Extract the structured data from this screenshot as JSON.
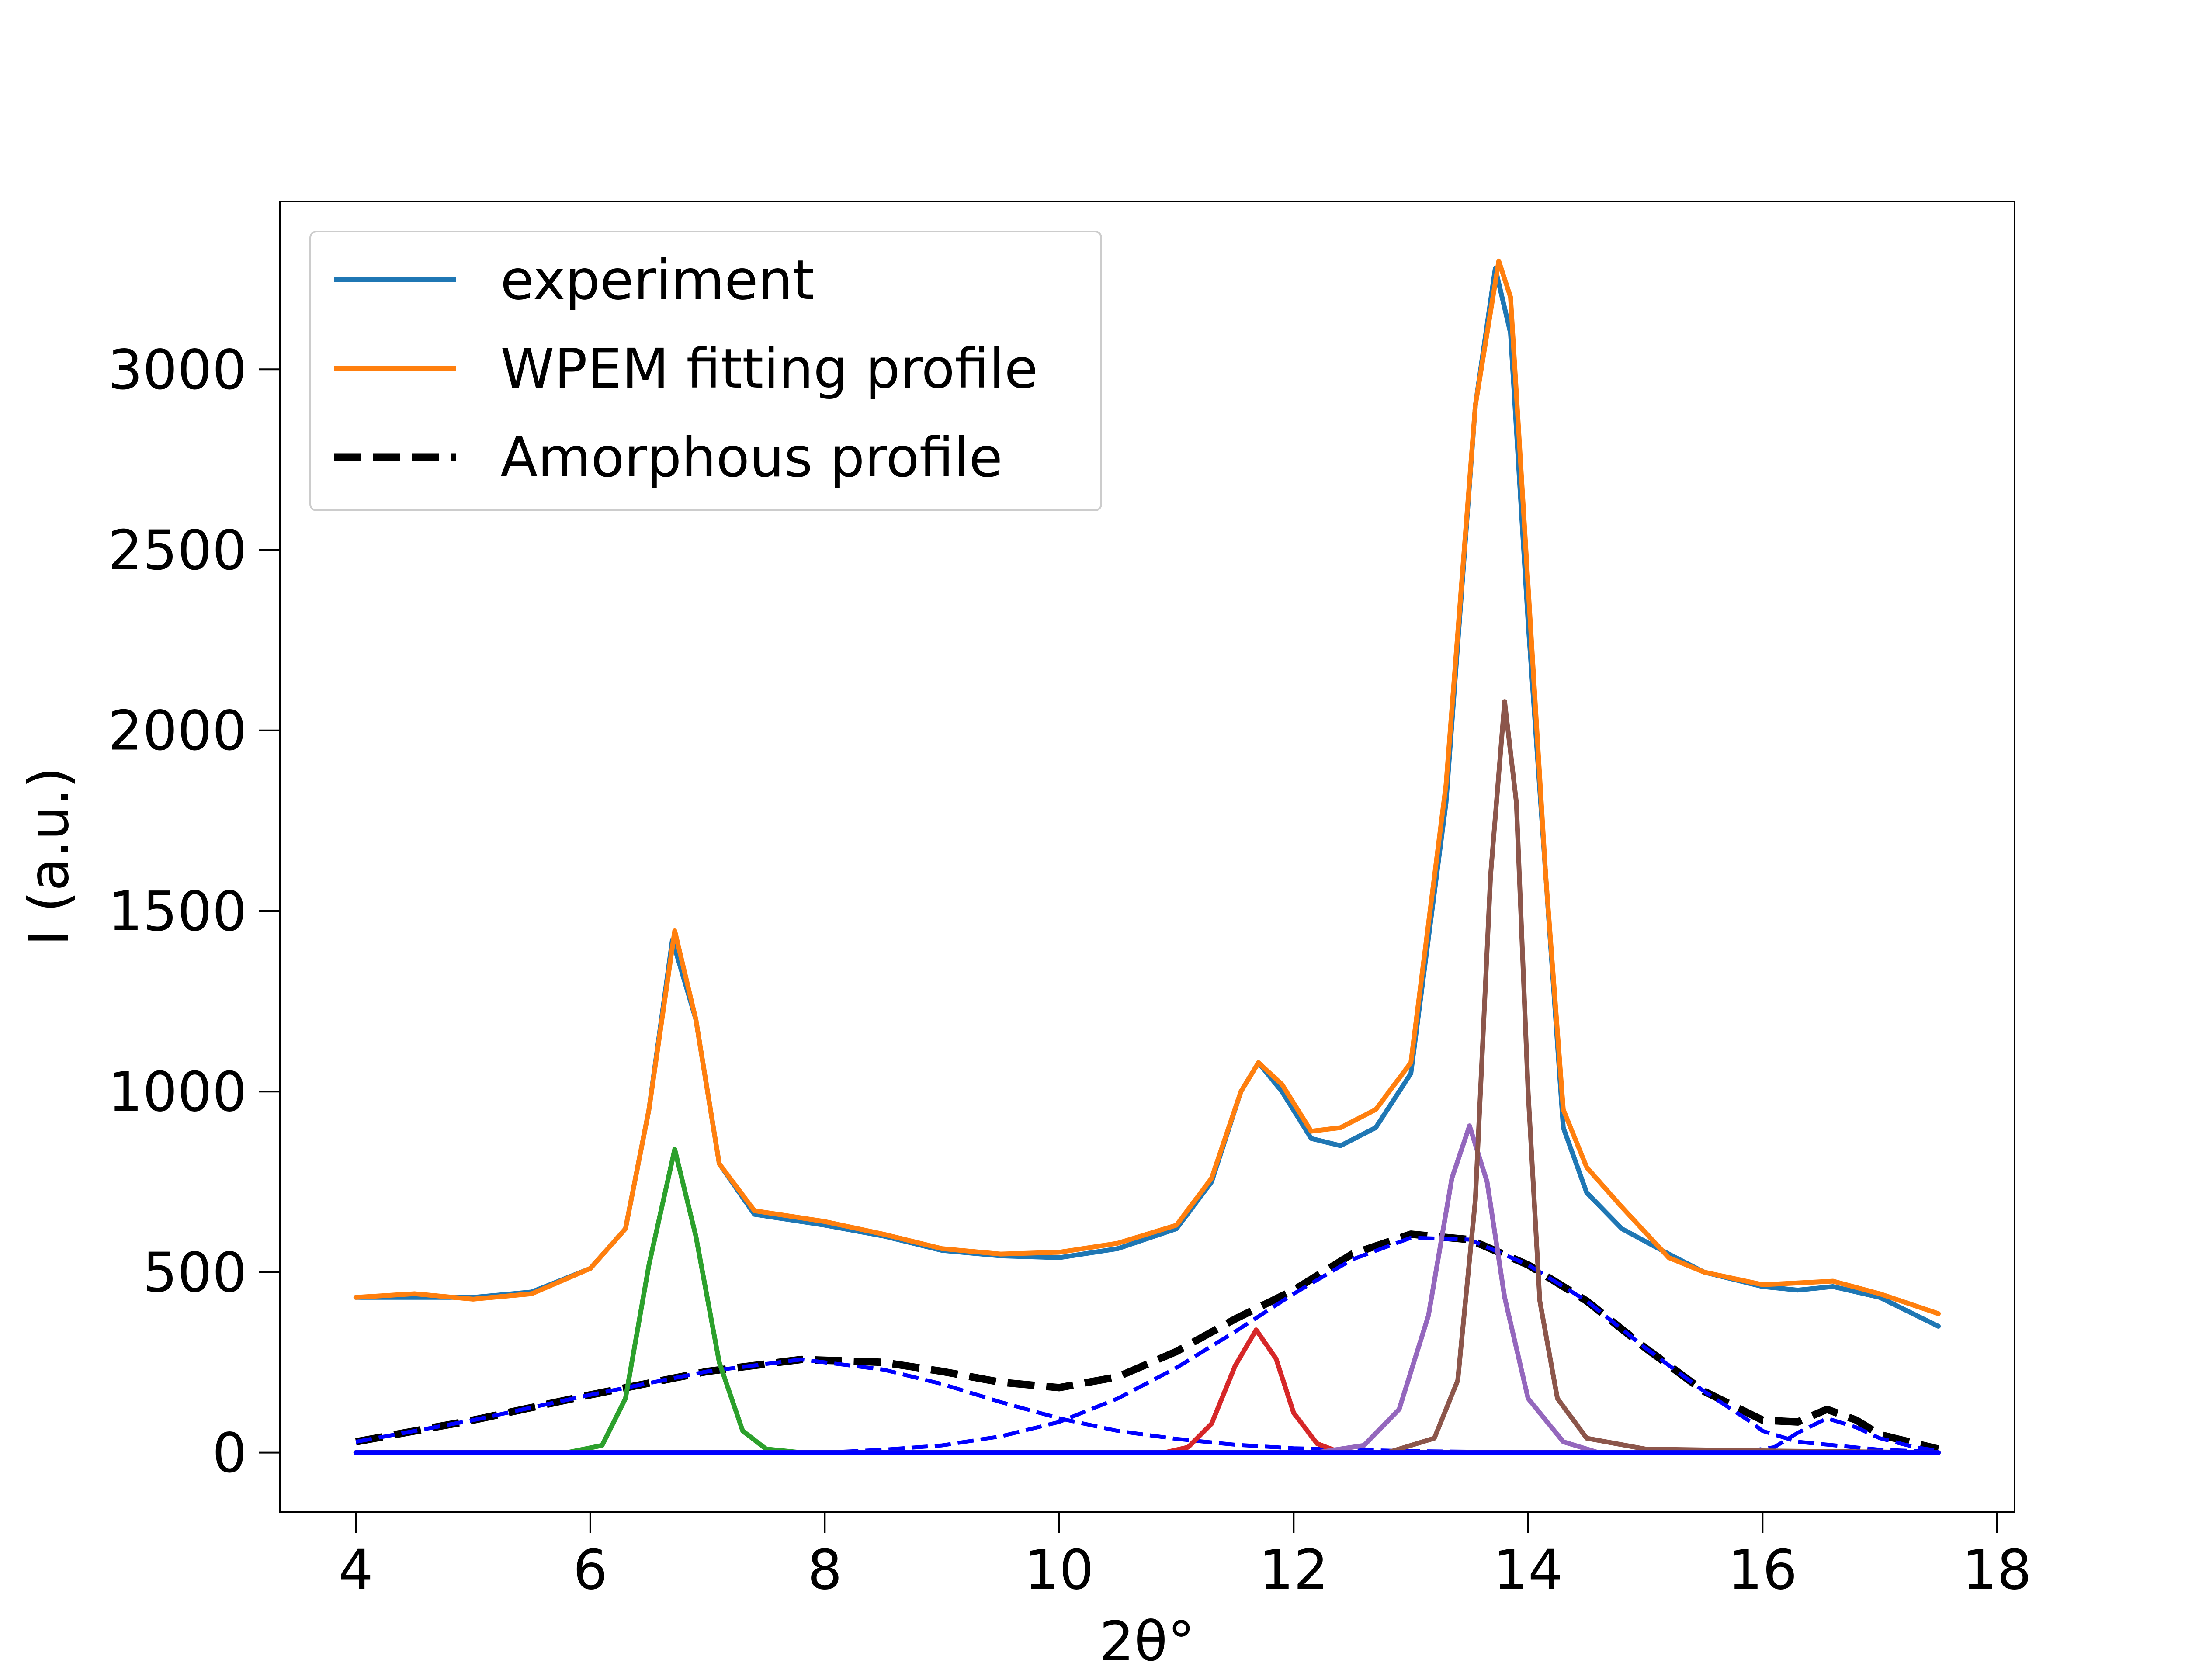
{
  "chart_data": {
    "type": "line",
    "title": "",
    "xlabel": "2θ°",
    "ylabel": "I (a.u.)",
    "xlim": [
      3.35,
      18.15
    ],
    "ylim": [
      -165,
      3465
    ],
    "xticks": [
      4,
      6,
      8,
      10,
      12,
      14,
      16,
      18
    ],
    "yticks": [
      0,
      500,
      1000,
      1500,
      2000,
      2500,
      3000
    ],
    "grid": false,
    "legend_position": "top-left",
    "legend": [
      {
        "label": "experiment",
        "color": "#1f77b4",
        "style": "solid"
      },
      {
        "label": "WPEM fitting profile",
        "color": "#ff7f0e",
        "style": "solid"
      },
      {
        "label": "Amorphous profile",
        "color": "#000000",
        "style": "dashed"
      }
    ],
    "series": [
      {
        "name": "experiment",
        "color": "#1f77b4",
        "style": "solid",
        "points": [
          [
            4.0,
            430
          ],
          [
            4.5,
            430
          ],
          [
            5.0,
            430
          ],
          [
            5.5,
            445
          ],
          [
            6.0,
            510
          ],
          [
            6.3,
            620
          ],
          [
            6.5,
            950
          ],
          [
            6.7,
            1420
          ],
          [
            6.9,
            1200
          ],
          [
            7.1,
            800
          ],
          [
            7.4,
            660
          ],
          [
            8.0,
            630
          ],
          [
            8.5,
            600
          ],
          [
            9.0,
            560
          ],
          [
            9.5,
            545
          ],
          [
            10.0,
            540
          ],
          [
            10.5,
            565
          ],
          [
            11.0,
            620
          ],
          [
            11.3,
            750
          ],
          [
            11.55,
            1000
          ],
          [
            11.7,
            1080
          ],
          [
            11.9,
            1000
          ],
          [
            12.15,
            870
          ],
          [
            12.4,
            850
          ],
          [
            12.7,
            900
          ],
          [
            13.0,
            1050
          ],
          [
            13.3,
            1800
          ],
          [
            13.55,
            2900
          ],
          [
            13.72,
            3280
          ],
          [
            13.85,
            3100
          ],
          [
            14.0,
            2300
          ],
          [
            14.15,
            1600
          ],
          [
            14.3,
            900
          ],
          [
            14.5,
            720
          ],
          [
            14.8,
            620
          ],
          [
            15.2,
            550
          ],
          [
            15.5,
            500
          ],
          [
            16.0,
            460
          ],
          [
            16.3,
            450
          ],
          [
            16.6,
            460
          ],
          [
            17.0,
            430
          ],
          [
            17.5,
            350
          ]
        ]
      },
      {
        "name": "WPEM fitting profile",
        "color": "#ff7f0e",
        "style": "solid",
        "points": [
          [
            4.0,
            430
          ],
          [
            4.5,
            440
          ],
          [
            5.0,
            425
          ],
          [
            5.5,
            440
          ],
          [
            6.0,
            510
          ],
          [
            6.3,
            620
          ],
          [
            6.5,
            950
          ],
          [
            6.72,
            1445
          ],
          [
            6.9,
            1200
          ],
          [
            7.1,
            800
          ],
          [
            7.4,
            670
          ],
          [
            8.0,
            640
          ],
          [
            8.5,
            605
          ],
          [
            9.0,
            565
          ],
          [
            9.5,
            550
          ],
          [
            10.0,
            555
          ],
          [
            10.5,
            580
          ],
          [
            11.0,
            630
          ],
          [
            11.3,
            760
          ],
          [
            11.55,
            1000
          ],
          [
            11.7,
            1080
          ],
          [
            11.9,
            1020
          ],
          [
            12.15,
            890
          ],
          [
            12.4,
            900
          ],
          [
            12.7,
            950
          ],
          [
            13.0,
            1080
          ],
          [
            13.3,
            1850
          ],
          [
            13.55,
            2900
          ],
          [
            13.75,
            3300
          ],
          [
            13.85,
            3200
          ],
          [
            14.0,
            2400
          ],
          [
            14.15,
            1600
          ],
          [
            14.3,
            950
          ],
          [
            14.5,
            790
          ],
          [
            14.8,
            680
          ],
          [
            15.2,
            540
          ],
          [
            15.5,
            500
          ],
          [
            16.0,
            465
          ],
          [
            16.3,
            470
          ],
          [
            16.6,
            475
          ],
          [
            17.0,
            440
          ],
          [
            17.5,
            385
          ]
        ]
      },
      {
        "name": "Amorphous profile",
        "color": "#000000",
        "style": "dashed",
        "points": [
          [
            4.0,
            30
          ],
          [
            5.0,
            90
          ],
          [
            6.0,
            160
          ],
          [
            7.0,
            225
          ],
          [
            7.8,
            258
          ],
          [
            8.5,
            250
          ],
          [
            9.0,
            225
          ],
          [
            9.5,
            195
          ],
          [
            10.0,
            180
          ],
          [
            10.5,
            210
          ],
          [
            11.0,
            280
          ],
          [
            11.5,
            370
          ],
          [
            12.0,
            450
          ],
          [
            12.5,
            550
          ],
          [
            13.0,
            605
          ],
          [
            13.5,
            590
          ],
          [
            14.0,
            520
          ],
          [
            14.5,
            420
          ],
          [
            15.0,
            290
          ],
          [
            15.5,
            170
          ],
          [
            16.0,
            90
          ],
          [
            16.3,
            85
          ],
          [
            16.55,
            120
          ],
          [
            16.8,
            90
          ],
          [
            17.0,
            50
          ],
          [
            17.5,
            10
          ]
        ]
      },
      {
        "color": "#0000ff",
        "style": "dashed",
        "points": [
          [
            4.0,
            30
          ],
          [
            5.0,
            90
          ],
          [
            6.0,
            160
          ],
          [
            7.0,
            225
          ],
          [
            7.8,
            258
          ],
          [
            8.5,
            230
          ],
          [
            9.0,
            190
          ],
          [
            9.5,
            140
          ],
          [
            10.0,
            95
          ],
          [
            10.5,
            60
          ],
          [
            11.0,
            38
          ],
          [
            11.5,
            22
          ],
          [
            12.0,
            12
          ],
          [
            13.0,
            4
          ],
          [
            14.0,
            1
          ],
          [
            17.5,
            0
          ]
        ]
      },
      {
        "color": "#0000ff",
        "style": "dashed",
        "points": [
          [
            4.0,
            0
          ],
          [
            8.0,
            0
          ],
          [
            8.5,
            8
          ],
          [
            9.0,
            20
          ],
          [
            9.5,
            45
          ],
          [
            10.0,
            85
          ],
          [
            10.5,
            150
          ],
          [
            11.0,
            235
          ],
          [
            11.5,
            335
          ],
          [
            12.0,
            440
          ],
          [
            12.5,
            535
          ],
          [
            13.0,
            595
          ],
          [
            13.5,
            590
          ],
          [
            14.0,
            520
          ],
          [
            14.5,
            420
          ],
          [
            15.0,
            290
          ],
          [
            15.5,
            170
          ],
          [
            15.9,
            85
          ],
          [
            16.0,
            60
          ],
          [
            16.3,
            30
          ],
          [
            17.0,
            8
          ],
          [
            17.5,
            2
          ]
        ]
      },
      {
        "color": "#0000ff",
        "style": "dashed",
        "points": [
          [
            4.0,
            0
          ],
          [
            15.8,
            0
          ],
          [
            16.1,
            15
          ],
          [
            16.3,
            55
          ],
          [
            16.55,
            95
          ],
          [
            16.8,
            70
          ],
          [
            17.0,
            40
          ],
          [
            17.3,
            15
          ],
          [
            17.5,
            5
          ]
        ]
      },
      {
        "color": "#2ca02c",
        "style": "solid",
        "points": [
          [
            4.0,
            0
          ],
          [
            5.8,
            0
          ],
          [
            6.1,
            20
          ],
          [
            6.3,
            150
          ],
          [
            6.5,
            520
          ],
          [
            6.72,
            840
          ],
          [
            6.9,
            600
          ],
          [
            7.1,
            250
          ],
          [
            7.3,
            60
          ],
          [
            7.5,
            10
          ],
          [
            7.8,
            0
          ],
          [
            17.5,
            0
          ]
        ]
      },
      {
        "color": "#d62728",
        "style": "solid",
        "points": [
          [
            4.0,
            0
          ],
          [
            10.9,
            0
          ],
          [
            11.1,
            15
          ],
          [
            11.3,
            80
          ],
          [
            11.5,
            240
          ],
          [
            11.68,
            340
          ],
          [
            11.85,
            260
          ],
          [
            12.0,
            110
          ],
          [
            12.2,
            25
          ],
          [
            12.4,
            0
          ],
          [
            17.5,
            0
          ]
        ]
      },
      {
        "color": "#9467bd",
        "style": "solid",
        "points": [
          [
            4.0,
            0
          ],
          [
            12.2,
            0
          ],
          [
            12.6,
            20
          ],
          [
            12.9,
            120
          ],
          [
            13.15,
            380
          ],
          [
            13.35,
            760
          ],
          [
            13.5,
            905
          ],
          [
            13.65,
            750
          ],
          [
            13.8,
            430
          ],
          [
            14.0,
            150
          ],
          [
            14.3,
            30
          ],
          [
            14.6,
            0
          ],
          [
            17.5,
            0
          ]
        ]
      },
      {
        "color": "#8c564b",
        "style": "solid",
        "points": [
          [
            4.0,
            0
          ],
          [
            12.8,
            0
          ],
          [
            13.2,
            40
          ],
          [
            13.4,
            200
          ],
          [
            13.55,
            700
          ],
          [
            13.68,
            1600
          ],
          [
            13.8,
            2080
          ],
          [
            13.9,
            1800
          ],
          [
            14.0,
            1000
          ],
          [
            14.1,
            420
          ],
          [
            14.25,
            150
          ],
          [
            14.5,
            40
          ],
          [
            15.0,
            10
          ],
          [
            16.0,
            5
          ],
          [
            17.5,
            0
          ]
        ]
      },
      {
        "color": "#0000ff",
        "style": "solid",
        "points": [
          [
            4.0,
            0
          ],
          [
            17.5,
            0
          ]
        ]
      }
    ]
  }
}
